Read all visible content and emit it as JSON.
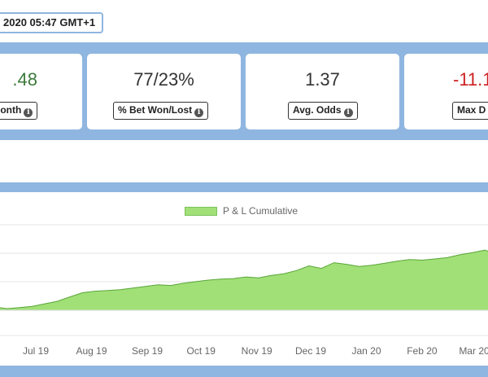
{
  "header": {
    "timestamp": "2020 05:47 GMT+1"
  },
  "stats": [
    {
      "value": ".48",
      "label": "/Month",
      "value_color": "#3c7a3c"
    },
    {
      "value": "77/23%",
      "label": "% Bet Won/Lost",
      "value_color": "#333333"
    },
    {
      "value": "1.37",
      "label": "Avg. Odds",
      "value_color": "#333333"
    },
    {
      "value": "-11.1",
      "label": "Max D",
      "value_color": "#cc1f1f"
    }
  ],
  "info_icon": "info-icon",
  "colors": {
    "band": "#8fb6e0",
    "area_fill": "#a0e077",
    "area_line": "#5aa53a"
  },
  "chart_data": {
    "type": "area",
    "title": "",
    "legend": [
      "P & L Cumulative"
    ],
    "legend_position": "top-center",
    "grid": true,
    "x_tick_labels": [
      "Jul 19",
      "Aug 19",
      "Sep 19",
      "Oct 19",
      "Nov 19",
      "Dec 19",
      "Jan 20",
      "Feb 20",
      "Mar 20"
    ],
    "x": [
      "2019-06-08",
      "2019-06-15",
      "2019-06-22",
      "2019-06-29",
      "2019-07-06",
      "2019-07-13",
      "2019-07-20",
      "2019-07-27",
      "2019-08-03",
      "2019-08-10",
      "2019-08-17",
      "2019-08-24",
      "2019-08-31",
      "2019-09-07",
      "2019-09-14",
      "2019-09-21",
      "2019-09-28",
      "2019-10-05",
      "2019-10-12",
      "2019-10-19",
      "2019-10-26",
      "2019-11-02",
      "2019-11-09",
      "2019-11-16",
      "2019-11-23",
      "2019-11-30",
      "2019-12-07",
      "2019-12-14",
      "2019-12-21",
      "2019-12-28",
      "2020-01-04",
      "2020-01-11",
      "2020-01-18",
      "2020-01-25",
      "2020-02-01",
      "2020-02-08",
      "2020-02-15",
      "2020-02-22",
      "2020-02-29",
      "2020-03-07",
      "2020-03-14"
    ],
    "series": [
      {
        "name": "P & L Cumulative",
        "values": [
          0.4,
          0.35,
          0.38,
          0.42,
          0.5,
          0.58,
          0.72,
          0.85,
          0.9,
          0.92,
          0.95,
          1.0,
          1.05,
          1.1,
          1.08,
          1.15,
          1.2,
          1.25,
          1.28,
          1.3,
          1.35,
          1.32,
          1.4,
          1.45,
          1.55,
          1.7,
          1.62,
          1.8,
          1.75,
          1.68,
          1.72,
          1.78,
          1.85,
          1.9,
          1.88,
          1.92,
          1.96,
          2.05,
          2.12,
          2.2,
          2.05
        ]
      }
    ],
    "ylim": [
      -0.5,
      3.0
    ]
  }
}
